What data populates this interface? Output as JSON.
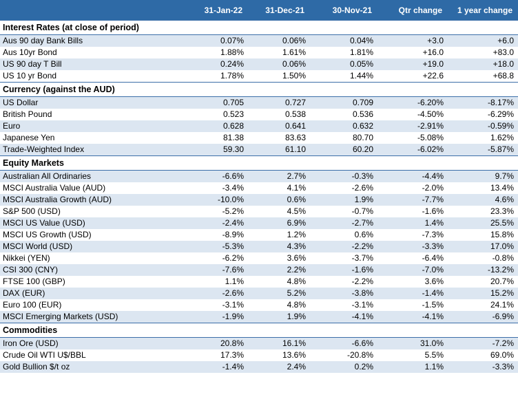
{
  "header": {
    "columns": [
      "",
      "31-Jan-22",
      "31-Dec-21",
      "30-Nov-21",
      "Qtr change",
      "1 year change"
    ]
  },
  "sections": [
    {
      "title": "Interest Rates (at close of period)",
      "rows": [
        [
          "Aus 90 day Bank Bills",
          "0.07%",
          "0.06%",
          "0.04%",
          "+3.0",
          "+6.0"
        ],
        [
          "Aus 10yr Bond",
          "1.88%",
          "1.61%",
          "1.81%",
          "+16.0",
          "+83.0"
        ],
        [
          "US 90 day T Bill",
          "0.24%",
          "0.06%",
          "0.05%",
          "+19.0",
          "+18.0"
        ],
        [
          "US 10 yr Bond",
          "1.78%",
          "1.50%",
          "1.44%",
          "+22.6",
          "+68.8"
        ]
      ]
    },
    {
      "title": "Currency (against the AUD)",
      "rows": [
        [
          "US Dollar",
          "0.705",
          "0.727",
          "0.709",
          "-6.20%",
          "-8.17%"
        ],
        [
          "British Pound",
          "0.523",
          "0.538",
          "0.536",
          "-4.50%",
          "-6.29%"
        ],
        [
          "Euro",
          "0.628",
          "0.641",
          "0.632",
          "-2.91%",
          "-0.59%"
        ],
        [
          "Japanese Yen",
          "81.38",
          "83.63",
          "80.70",
          "-5.08%",
          "1.62%"
        ],
        [
          "Trade-Weighted Index",
          "59.30",
          "61.10",
          "60.20",
          "-6.02%",
          "-5.87%"
        ]
      ]
    },
    {
      "title": "Equity Markets",
      "rows": [
        [
          "Australian All Ordinaries",
          "-6.6%",
          "2.7%",
          "-0.3%",
          "-4.4%",
          "9.7%"
        ],
        [
          "MSCI Australia Value (AUD)",
          "-3.4%",
          "4.1%",
          "-2.6%",
          "-2.0%",
          "13.4%"
        ],
        [
          "MSCI Australia Growth (AUD)",
          "-10.0%",
          "0.6%",
          "1.9%",
          "-7.7%",
          "4.6%"
        ],
        [
          "S&P 500 (USD)",
          "-5.2%",
          "4.5%",
          "-0.7%",
          "-1.6%",
          "23.3%"
        ],
        [
          "MSCI US Value (USD)",
          "-2.4%",
          "6.9%",
          "-2.7%",
          "1.4%",
          "25.5%"
        ],
        [
          "MSCI US Growth (USD)",
          "-8.9%",
          "1.2%",
          "0.6%",
          "-7.3%",
          "15.8%"
        ],
        [
          "MSCI World (USD)",
          "-5.3%",
          "4.3%",
          "-2.2%",
          "-3.3%",
          "17.0%"
        ],
        [
          "Nikkei (YEN)",
          "-6.2%",
          "3.6%",
          "-3.7%",
          "-6.4%",
          "-0.8%"
        ],
        [
          "CSI 300 (CNY)",
          "-7.6%",
          "2.2%",
          "-1.6%",
          "-7.0%",
          "-13.2%"
        ],
        [
          "FTSE 100 (GBP)",
          "1.1%",
          "4.8%",
          "-2.2%",
          "3.6%",
          "20.7%"
        ],
        [
          "DAX (EUR)",
          "-2.6%",
          "5.2%",
          "-3.8%",
          "-1.4%",
          "15.2%"
        ],
        [
          "Euro 100 (EUR)",
          "-3.1%",
          "4.8%",
          "-3.1%",
          "-1.5%",
          "24.1%"
        ],
        [
          "MSCI Emerging Markets (USD)",
          "-1.9%",
          "1.9%",
          "-4.1%",
          "-4.1%",
          "-6.9%"
        ]
      ]
    },
    {
      "title": "Commodities",
      "rows": [
        [
          "Iron Ore (USD)",
          "20.8%",
          "16.1%",
          "-6.6%",
          "31.0%",
          "-7.2%"
        ],
        [
          "Crude Oil WTI U$/BBL",
          "17.3%",
          "13.6%",
          "-20.8%",
          "5.5%",
          "69.0%"
        ],
        [
          "Gold Bullion $/t oz",
          "-1.4%",
          "2.4%",
          "0.2%",
          "1.1%",
          "-3.3%"
        ]
      ]
    }
  ]
}
